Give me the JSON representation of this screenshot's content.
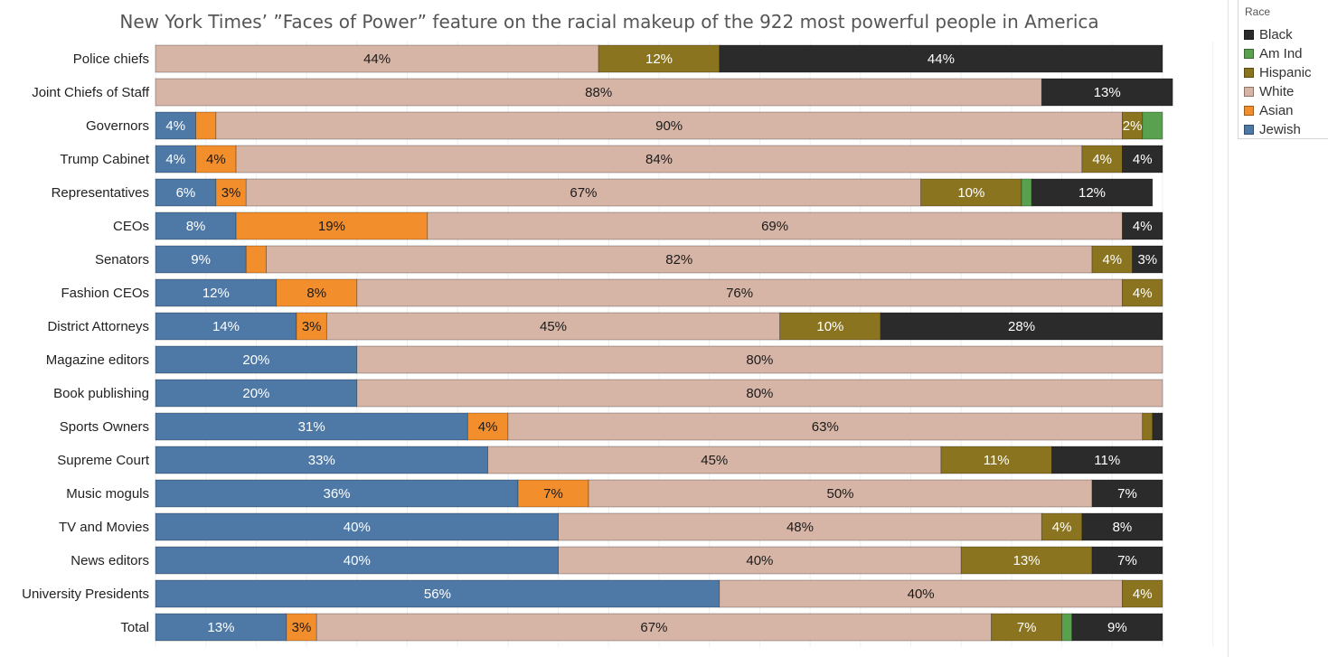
{
  "title": "New York Times’ ”Faces of Power” feature on the racial makeup of the 922 most powerful people in America",
  "legend": {
    "title": "Race",
    "items": [
      {
        "label": "Black",
        "color": "#2b2b2b"
      },
      {
        "label": "Am Ind",
        "color": "#59a14f"
      },
      {
        "label": "Hispanic",
        "color": "#8b7420"
      },
      {
        "label": "White",
        "color": "#d7b5a6"
      },
      {
        "label": "Asian",
        "color": "#f28e2b"
      },
      {
        "label": "Jewish",
        "color": "#4e79a7"
      }
    ]
  },
  "chart_data": {
    "type": "bar",
    "orientation": "horizontal",
    "stacked": true,
    "title": "New York Times’ ”Faces of Power” feature on the racial makeup of the 922 most powerful people in America",
    "xlabel": "",
    "ylabel": "",
    "categories": [
      "Police chiefs",
      "Joint Chiefs of Staff",
      "Governors",
      "Trump Cabinet",
      "Representatives",
      "CEOs",
      "Senators",
      "Fashion CEOs",
      "District Attorneys",
      "Magazine editors",
      "Book publishing",
      "Sports Owners",
      "Supreme Court",
      "Music moguls",
      "TV and Movies",
      "News editors",
      "University Presidents",
      "Total"
    ],
    "series": [
      {
        "name": "Jewish",
        "color": "#4e79a7",
        "values": [
          0,
          0,
          4,
          4,
          6,
          8,
          9,
          12,
          14,
          20,
          20,
          31,
          33,
          36,
          40,
          40,
          56,
          13
        ],
        "labels": [
          "",
          "",
          "4%",
          "4%",
          "6%",
          "8%",
          "9%",
          "12%",
          "14%",
          "20%",
          "20%",
          "31%",
          "33%",
          "36%",
          "40%",
          "40%",
          "56%",
          "13%"
        ]
      },
      {
        "name": "Asian",
        "color": "#f28e2b",
        "values": [
          0,
          0,
          2,
          4,
          3,
          19,
          2,
          8,
          3,
          0,
          0,
          4,
          0,
          7,
          0,
          0,
          0,
          3
        ],
        "labels": [
          "",
          "",
          "",
          "4%",
          "3%",
          "19%",
          "",
          "8%",
          "3%",
          "",
          "",
          "4%",
          "",
          "7%",
          "",
          "",
          "",
          "3%"
        ]
      },
      {
        "name": "White",
        "color": "#d7b5a6",
        "values": [
          44,
          88,
          90,
          84,
          67,
          69,
          82,
          76,
          45,
          80,
          80,
          63,
          45,
          50,
          48,
          40,
          40,
          67
        ],
        "labels": [
          "44%",
          "88%",
          "90%",
          "84%",
          "67%",
          "69%",
          "82%",
          "76%",
          "45%",
          "80%",
          "80%",
          "63%",
          "45%",
          "50%",
          "48%",
          "40%",
          "40%",
          "67%"
        ]
      },
      {
        "name": "Hispanic",
        "color": "#8b7420",
        "values": [
          12,
          0,
          2,
          4,
          10,
          0,
          4,
          4,
          10,
          0,
          0,
          1,
          11,
          0,
          4,
          13,
          4,
          7
        ],
        "labels": [
          "12%",
          "",
          "2%",
          "4%",
          "10%",
          "",
          "4%",
          "4%",
          "10%",
          "",
          "",
          "",
          "11%",
          "",
          "4%",
          "13%",
          "4%",
          "7%"
        ]
      },
      {
        "name": "Am Ind",
        "color": "#59a14f",
        "values": [
          0,
          0,
          2,
          0,
          1,
          0,
          0,
          0,
          0,
          0,
          0,
          0,
          0,
          0,
          0,
          0,
          0,
          1
        ],
        "labels": [
          "",
          "",
          "",
          "",
          "",
          "",
          "",
          "",
          "",
          "",
          "",
          "",
          "",
          "",
          "",
          "",
          "",
          ""
        ]
      },
      {
        "name": "Black",
        "color": "#2b2b2b",
        "values": [
          44,
          13,
          0,
          4,
          12,
          4,
          3,
          0,
          28,
          0,
          0,
          1,
          11,
          7,
          8,
          7,
          0,
          9
        ],
        "labels": [
          "44%",
          "13%",
          "",
          "4%",
          "12%",
          "4%",
          "3%",
          "",
          "28%",
          "",
          "",
          "",
          "11%",
          "7%",
          "8%",
          "7%",
          "",
          "9%"
        ]
      }
    ],
    "xlim": [
      0,
      100
    ],
    "grid": true,
    "legend_position": "top-right"
  }
}
